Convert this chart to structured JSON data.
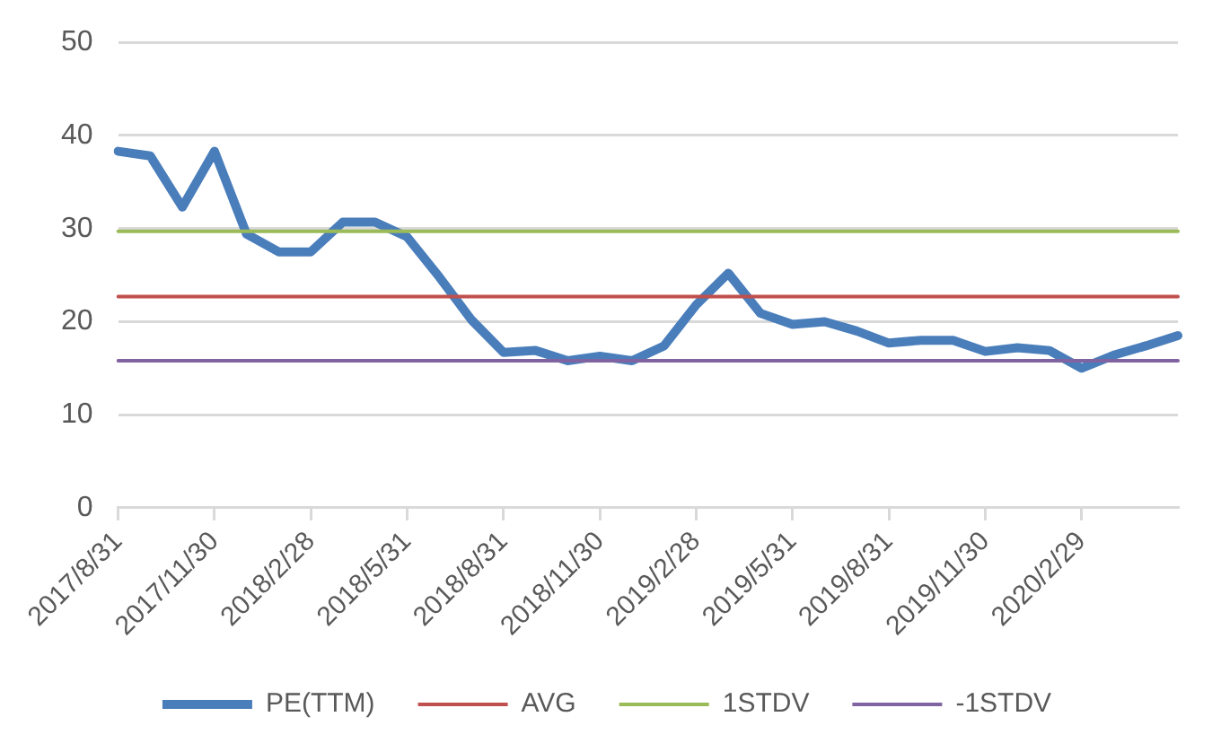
{
  "chart_data": {
    "type": "line",
    "categories": [
      "2017/8/31",
      null,
      null,
      "2017/11/30",
      null,
      null,
      "2018/2/28",
      null,
      null,
      "2018/5/31",
      null,
      null,
      "2018/8/31",
      null,
      null,
      "2018/11/30",
      null,
      null,
      "2019/2/28",
      null,
      null,
      "2019/5/31",
      null,
      null,
      "2019/8/31",
      null,
      null,
      "2019/11/30",
      null,
      null,
      "2020/2/29",
      null,
      null,
      null
    ],
    "series": [
      {
        "name": "PE(TTM)",
        "color": "#4a7ebb",
        "values": [
          38.3,
          37.8,
          32.3,
          38.3,
          29.4,
          27.5,
          27.5,
          30.7,
          30.7,
          29.1,
          24.8,
          20.2,
          16.7,
          16.9,
          15.8,
          16.3,
          15.8,
          17.4,
          21.8,
          25.2,
          20.9,
          19.7,
          20,
          19,
          17.7,
          18,
          18,
          16.8,
          17.2,
          16.9,
          15,
          16.4,
          17.4,
          18.5
        ]
      },
      {
        "name": "AVG",
        "color": "#c0504d",
        "values": [
          22.7,
          22.7,
          22.7,
          22.7,
          22.7,
          22.7,
          22.7,
          22.7,
          22.7,
          22.7,
          22.7,
          22.7,
          22.7,
          22.7,
          22.7,
          22.7,
          22.7,
          22.7,
          22.7,
          22.7,
          22.7,
          22.7,
          22.7,
          22.7,
          22.7,
          22.7,
          22.7,
          22.7,
          22.7,
          22.7,
          22.7,
          22.7,
          22.7,
          22.7
        ]
      },
      {
        "name": "1STDV",
        "color": "#9bbb59",
        "values": [
          29.7,
          29.7,
          29.7,
          29.7,
          29.7,
          29.7,
          29.7,
          29.7,
          29.7,
          29.7,
          29.7,
          29.7,
          29.7,
          29.7,
          29.7,
          29.7,
          29.7,
          29.7,
          29.7,
          29.7,
          29.7,
          29.7,
          29.7,
          29.7,
          29.7,
          29.7,
          29.7,
          29.7,
          29.7,
          29.7,
          29.7,
          29.7,
          29.7,
          29.7
        ]
      },
      {
        "name": "-1STDV",
        "color": "#8064a2",
        "values": [
          15.8,
          15.8,
          15.8,
          15.8,
          15.8,
          15.8,
          15.8,
          15.8,
          15.8,
          15.8,
          15.8,
          15.8,
          15.8,
          15.8,
          15.8,
          15.8,
          15.8,
          15.8,
          15.8,
          15.8,
          15.8,
          15.8,
          15.8,
          15.8,
          15.8,
          15.8,
          15.8,
          15.8,
          15.8,
          15.8,
          15.8,
          15.8,
          15.8,
          15.8
        ]
      }
    ],
    "ylim": [
      0,
      50
    ],
    "yticks": [
      0,
      10,
      20,
      30,
      40,
      50
    ],
    "grid": "y",
    "legend": "bottom",
    "marker": "none",
    "line_style": "solid"
  }
}
